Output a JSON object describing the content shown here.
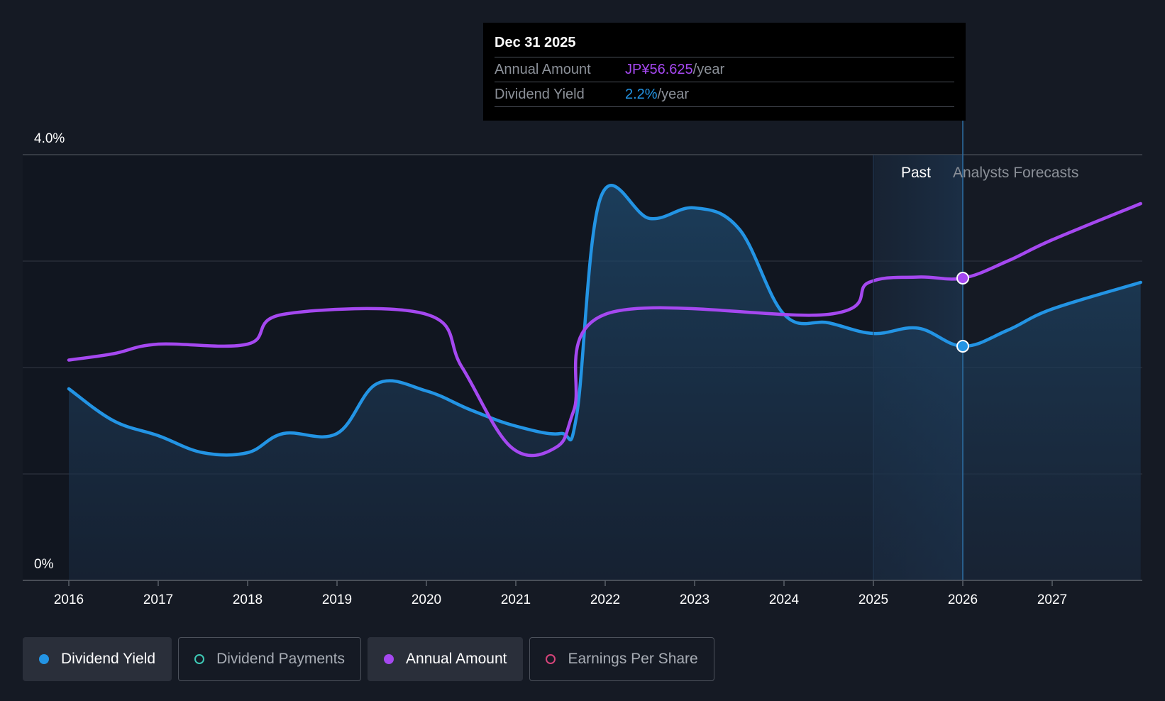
{
  "chart_data": {
    "type": "line",
    "y_axis": {
      "top_label": "4.0%",
      "bottom_label": "0%",
      "ylim": [
        0,
        4.0
      ]
    },
    "x_ticks": [
      "2016",
      "2017",
      "2018",
      "2019",
      "2020",
      "2021",
      "2022",
      "2023",
      "2024",
      "2025",
      "2026",
      "2027"
    ],
    "xlim": [
      2016.0,
      2027.99
    ],
    "regions": {
      "past_label": "Past",
      "forecast_label": "Analysts Forecasts",
      "past_start": 2025.0,
      "divider": 2026.0
    },
    "series": [
      {
        "name": "Dividend Yield",
        "color": "#2394e4",
        "area": true,
        "points": [
          [
            2016.0,
            1.8
          ],
          [
            2016.5,
            1.5
          ],
          [
            2017.0,
            1.36
          ],
          [
            2017.5,
            1.2
          ],
          [
            2018.0,
            1.2
          ],
          [
            2018.4,
            1.38
          ],
          [
            2019.0,
            1.38
          ],
          [
            2019.45,
            1.85
          ],
          [
            2020.0,
            1.78
          ],
          [
            2020.5,
            1.6
          ],
          [
            2021.0,
            1.45
          ],
          [
            2021.5,
            1.38
          ],
          [
            2021.68,
            1.55
          ],
          [
            2021.95,
            3.6
          ],
          [
            2022.5,
            3.4
          ],
          [
            2023.0,
            3.5
          ],
          [
            2023.5,
            3.3
          ],
          [
            2024.0,
            2.5
          ],
          [
            2024.5,
            2.42
          ],
          [
            2025.0,
            2.32
          ],
          [
            2025.5,
            2.37
          ],
          [
            2026.0,
            2.2
          ],
          [
            2026.5,
            2.35
          ],
          [
            2027.0,
            2.55
          ],
          [
            2027.99,
            2.8
          ]
        ]
      },
      {
        "name": "Annual Amount",
        "color": "#a548f0",
        "area": false,
        "points": [
          [
            2016.0,
            2.07
          ],
          [
            2016.5,
            2.13
          ],
          [
            2017.0,
            2.22
          ],
          [
            2018.0,
            2.22
          ],
          [
            2018.4,
            2.5
          ],
          [
            2020.0,
            2.5
          ],
          [
            2020.4,
            2.0
          ],
          [
            2020.95,
            1.25
          ],
          [
            2021.45,
            1.25
          ],
          [
            2021.65,
            1.6
          ],
          [
            2022.0,
            2.5
          ],
          [
            2024.5,
            2.5
          ],
          [
            2024.95,
            2.8
          ],
          [
            2025.5,
            2.85
          ],
          [
            2026.0,
            2.84
          ],
          [
            2026.5,
            3.0
          ],
          [
            2027.0,
            3.2
          ],
          [
            2027.99,
            3.54
          ]
        ]
      }
    ],
    "highlight": {
      "x": 2026.0,
      "yield": 2.2,
      "amount": 2.84
    }
  },
  "tooltip": {
    "date": "Dec 31 2025",
    "rows": [
      {
        "label": "Annual Amount",
        "value": "JP¥56.625",
        "unit": "/year",
        "color": "#a548f0"
      },
      {
        "label": "Dividend Yield",
        "value": "2.2%",
        "unit": "/year",
        "color": "#2394e4"
      }
    ]
  },
  "legend": [
    {
      "label": "Dividend Yield",
      "active": true,
      "dot_color": "#2394e4",
      "hollow": false
    },
    {
      "label": "Dividend Payments",
      "active": false,
      "dot_color": "#3ec9b6",
      "hollow": true
    },
    {
      "label": "Annual Amount",
      "active": true,
      "dot_color": "#a548f0",
      "hollow": false
    },
    {
      "label": "Earnings Per Share",
      "active": false,
      "dot_color": "#d6447a",
      "hollow": true
    }
  ]
}
